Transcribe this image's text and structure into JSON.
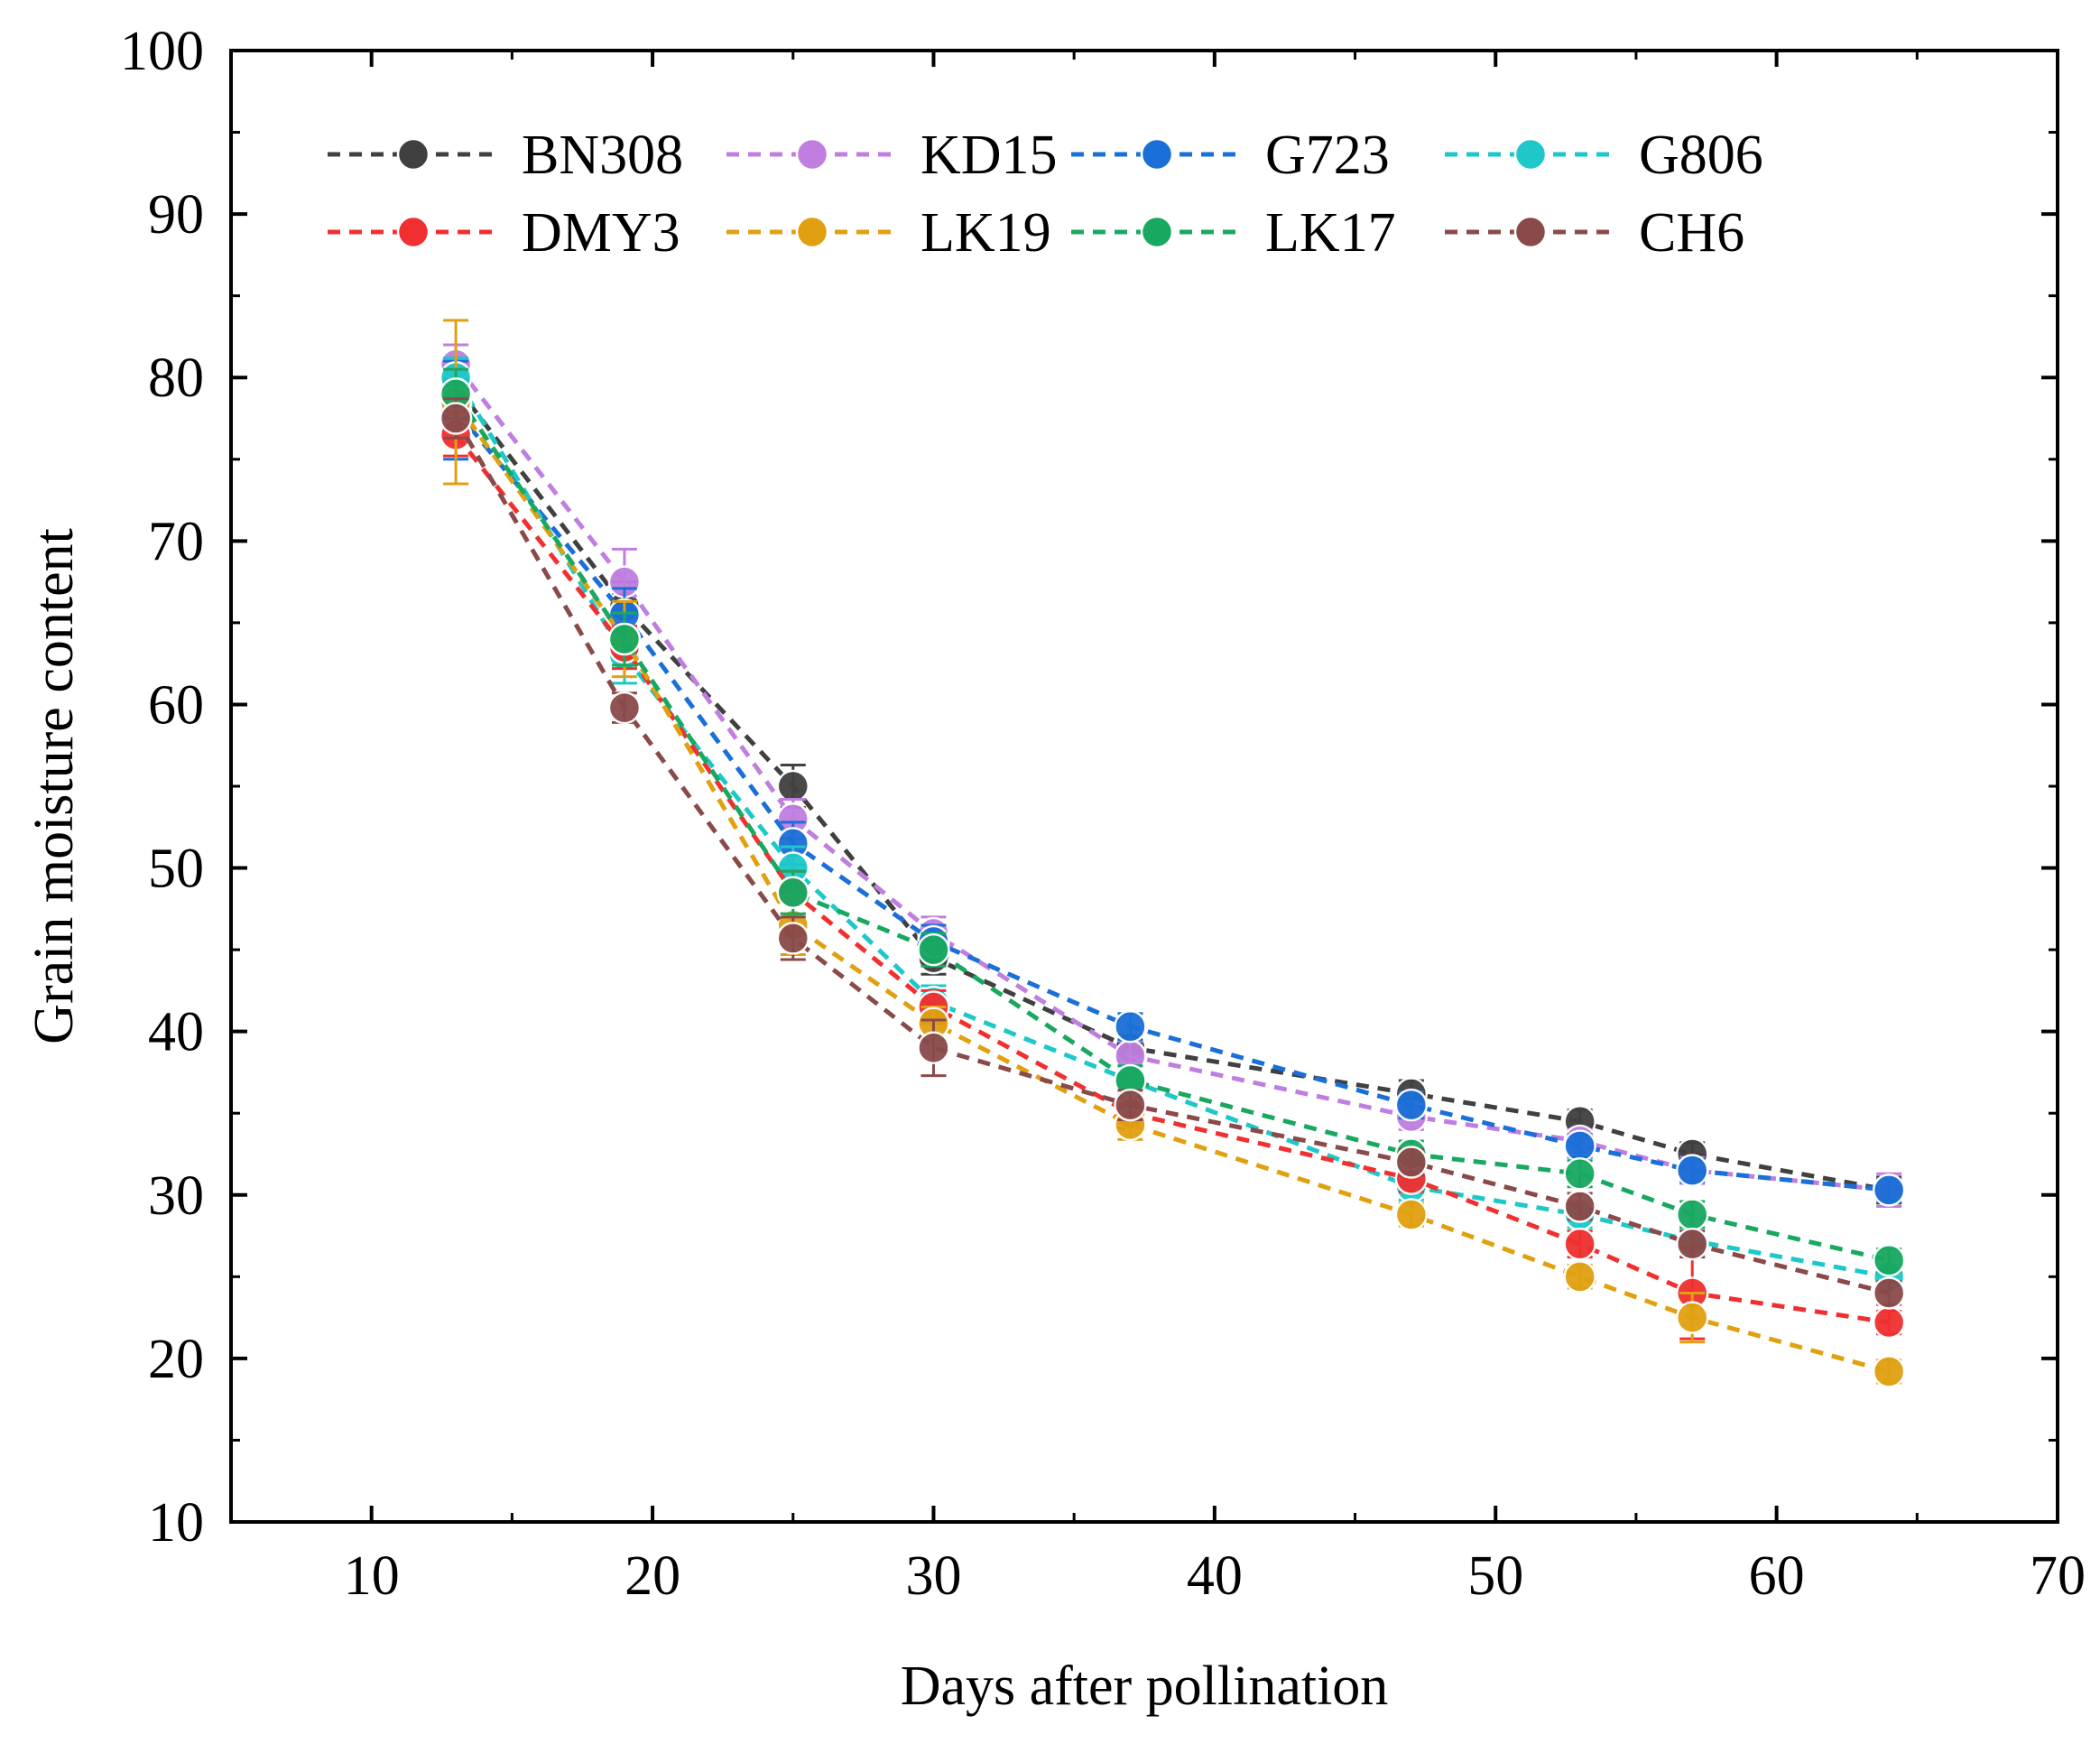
{
  "chart_data": {
    "type": "line",
    "title": "",
    "xlabel": "Days after pollination",
    "ylabel": "Grain moisture content",
    "xlim": [
      5,
      70
    ],
    "ylim": [
      10,
      100
    ],
    "x_ticks": [
      10,
      20,
      30,
      40,
      50,
      60,
      70
    ],
    "y_ticks": [
      10,
      20,
      30,
      40,
      50,
      60,
      70,
      80,
      90,
      100
    ],
    "x_tick_labels": [
      "10",
      "20",
      "30",
      "40",
      "50",
      "60",
      "70"
    ],
    "y_tick_labels": [
      "10",
      "20",
      "30",
      "40",
      "50",
      "60",
      "70",
      "80",
      "90",
      "100"
    ],
    "grid": false,
    "legend_position": "top",
    "x": [
      13,
      19,
      25,
      30,
      37,
      47,
      53,
      57,
      64
    ],
    "series": [
      {
        "name": "BN308",
        "color": "#404040",
        "values": [
          79.5,
          66.0,
          55.0,
          44.5,
          39.0,
          36.2,
          34.5,
          32.5,
          30.3
        ],
        "error": [
          1.0,
          1.5,
          1.3,
          1.0,
          0.8,
          0.8,
          0.7,
          0.7,
          0.8
        ]
      },
      {
        "name": "KD15",
        "color": "#c07ee0",
        "values": [
          80.8,
          67.5,
          53.0,
          46.0,
          38.5,
          34.8,
          33.3,
          31.5,
          30.3
        ],
        "error": [
          1.2,
          2.0,
          1.2,
          1.0,
          0.9,
          0.8,
          0.7,
          0.8,
          1.0
        ]
      },
      {
        "name": "G723",
        "color": "#1a6fd8",
        "values": [
          78.0,
          65.5,
          51.5,
          45.5,
          40.3,
          35.5,
          33.0,
          31.5,
          30.3
        ],
        "error": [
          3.0,
          1.6,
          1.3,
          1.0,
          0.8,
          0.8,
          0.7,
          0.7,
          0.7
        ]
      },
      {
        "name": "G806",
        "color": "#1ec8c8",
        "values": [
          80.0,
          63.0,
          50.0,
          41.8,
          37.0,
          30.5,
          28.8,
          27.2,
          25.0
        ],
        "error": [
          1.2,
          1.7,
          1.3,
          1.0,
          0.9,
          0.8,
          0.8,
          0.8,
          0.7
        ]
      },
      {
        "name": "DMY3",
        "color": "#f03030",
        "values": [
          76.5,
          63.5,
          48.5,
          41.5,
          35.0,
          31.0,
          27.0,
          24.0,
          22.2
        ],
        "error": [
          1.3,
          1.3,
          1.3,
          1.0,
          0.9,
          0.8,
          0.8,
          2.8,
          0.7
        ]
      },
      {
        "name": "LK19",
        "color": "#e0a010",
        "values": [
          78.5,
          64.0,
          46.5,
          40.5,
          34.3,
          28.8,
          25.0,
          22.5,
          19.2
        ],
        "error": [
          5.0,
          2.3,
          1.8,
          1.0,
          0.9,
          0.7,
          0.7,
          1.5,
          0.7
        ]
      },
      {
        "name": "LK17",
        "color": "#18a860",
        "values": [
          79.0,
          64.0,
          48.5,
          45.0,
          37.0,
          32.5,
          31.3,
          28.8,
          26.0
        ],
        "error": [
          1.5,
          1.6,
          1.3,
          1.0,
          0.9,
          0.8,
          0.8,
          0.8,
          0.7
        ]
      },
      {
        "name": "CH6",
        "color": "#8a4a4a",
        "values": [
          77.5,
          59.8,
          45.7,
          39.0,
          35.5,
          32.0,
          29.3,
          27.0,
          24.0
        ],
        "error": [
          1.2,
          0.9,
          1.3,
          1.7,
          0.9,
          0.8,
          0.8,
          0.8,
          0.7
        ]
      }
    ]
  }
}
